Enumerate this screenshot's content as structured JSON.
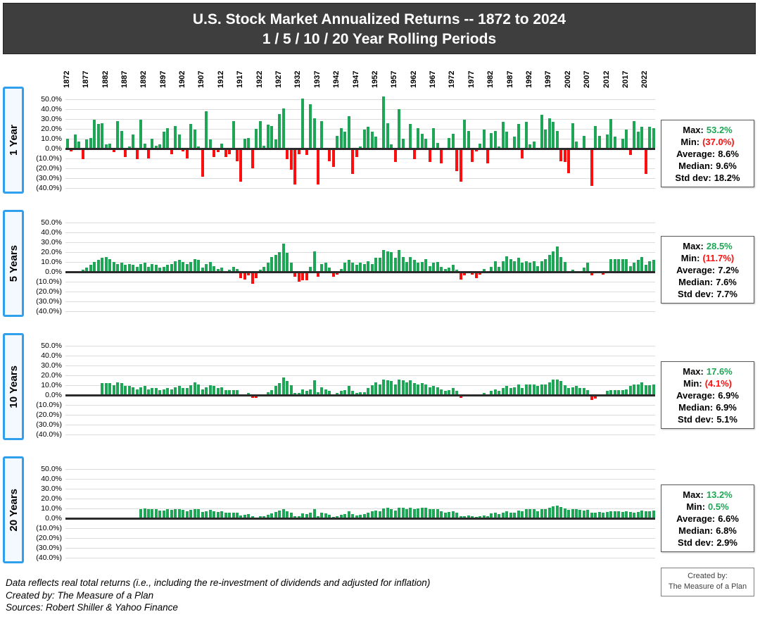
{
  "title": {
    "line1": "U.S. Stock Market Annualized Returns -- 1872 to 2024",
    "line2": "1 / 5 / 10 / 20 Year Rolling Periods"
  },
  "colors": {
    "positive": "#1EA555",
    "negative": "#FB0F0F",
    "title_bg": "#3E3E3E",
    "row_label_border": "#31A0EC",
    "grid": "#DCDCDC",
    "axis": "#2B2B2B"
  },
  "chart_data": {
    "type": "bar",
    "start_year": 1872,
    "end_year": 2024,
    "ylim": [
      -40,
      50
    ],
    "grid": true,
    "year_ticks": [
      1872,
      1877,
      1882,
      1887,
      1892,
      1897,
      1902,
      1907,
      1912,
      1917,
      1922,
      1927,
      1932,
      1937,
      1942,
      1947,
      1952,
      1957,
      1962,
      1967,
      1972,
      1977,
      1982,
      1987,
      1992,
      1997,
      2002,
      2007,
      2012,
      2017,
      2022
    ],
    "y_tick_labels": [
      "50.0%",
      "40.0%",
      "30.0%",
      "20.0%",
      "10.0%",
      "0.0%",
      "(10.0%)",
      "(20.0%)",
      "(30.0%)",
      "(40.0%)"
    ],
    "stat_labels": [
      "Max:",
      "Min:",
      "Average:",
      "Median:",
      "Std dev:"
    ],
    "charts": [
      {
        "row_label": "1 Year",
        "stats": {
          "max": "53.2%",
          "min": "(37.0%)",
          "average": "8.6%",
          "median": "9.6%",
          "stddev": "18.2%"
        },
        "values": [
          10,
          -2,
          14,
          7,
          -10,
          9,
          11,
          29,
          25,
          26,
          4,
          5,
          -3,
          28,
          18,
          -8,
          2,
          14,
          -10,
          29,
          5,
          -9,
          10,
          3,
          4,
          17,
          21,
          -5,
          23,
          14,
          -2,
          -9,
          25,
          19,
          2,
          -28,
          38,
          9,
          -8,
          -3,
          5,
          -8,
          -5,
          28,
          -12,
          -33,
          10,
          11,
          -19,
          20,
          28,
          3,
          24,
          23,
          9,
          35,
          41,
          -10,
          -21,
          -36,
          -5,
          51,
          -6,
          45,
          31,
          -36,
          28,
          -1,
          -12,
          -18,
          13,
          21,
          17,
          33,
          -25,
          -8,
          2,
          19,
          22,
          17,
          12,
          1,
          53.2,
          26,
          4,
          -13,
          40,
          10,
          1,
          25,
          -10,
          21,
          15,
          10,
          -13,
          21,
          6,
          -14,
          -1,
          11,
          15,
          -22,
          -33,
          29,
          18,
          -13,
          -2,
          5,
          19,
          -14,
          16,
          18,
          2,
          27,
          17,
          1,
          12,
          25,
          -9,
          27,
          4,
          7,
          -1,
          34,
          19,
          31,
          27,
          18,
          -12,
          -13,
          -24,
          26,
          7,
          1,
          13,
          1,
          -37,
          23,
          13,
          -1,
          14,
          30,
          12,
          0,
          10,
          19,
          -6,
          28,
          17,
          22,
          -25,
          22,
          21
        ]
      },
      {
        "row_label": "5 Years",
        "stats": {
          "max": "28.5%",
          "min": "(11.7%)",
          "average": "7.2%",
          "median": "7.6%",
          "stddev": "7.7%"
        },
        "values": [
          null,
          null,
          null,
          null,
          2,
          4,
          7,
          10,
          12,
          14,
          15,
          13,
          10,
          8,
          9,
          7,
          8,
          7,
          5,
          8,
          9,
          5,
          8,
          7,
          4,
          5,
          7,
          8,
          11,
          12,
          10,
          8,
          10,
          13,
          12,
          4,
          8,
          10,
          6,
          3,
          4,
          1,
          2,
          5,
          3,
          -6,
          -7,
          -3,
          -11.7,
          -6,
          2,
          5,
          9,
          15,
          17,
          20,
          28.5,
          19,
          9,
          -4,
          -9,
          -8,
          -8,
          5,
          21,
          -4,
          8,
          9,
          4,
          -4,
          -2,
          3,
          9,
          12,
          9,
          7,
          9,
          8,
          11,
          8,
          14,
          14,
          22,
          21,
          20,
          14,
          22,
          15,
          10,
          15,
          12,
          9,
          10,
          13,
          6,
          9,
          10,
          5,
          3,
          4,
          7,
          2,
          -7,
          -3,
          0.5,
          -2,
          -6,
          -2,
          3,
          1,
          5,
          11,
          5,
          11,
          16,
          13,
          11,
          14,
          9,
          11,
          9,
          11,
          6,
          11,
          13,
          17,
          21,
          26,
          15,
          10,
          0.5,
          2,
          1,
          -1,
          4,
          9,
          -3,
          -1,
          1,
          -2,
          0.5,
          13,
          13,
          13,
          13,
          13,
          6,
          9,
          12,
          15,
          7,
          11,
          12
        ]
      },
      {
        "row_label": "10 Years",
        "stats": {
          "max": "17.6%",
          "min": "(4.1%)",
          "average": "6.9%",
          "median": "6.9%",
          "stddev": "5.1%"
        },
        "values": [
          null,
          null,
          null,
          null,
          null,
          null,
          null,
          null,
          null,
          12,
          12,
          12,
          10,
          13,
          12,
          9,
          9,
          8,
          6,
          8,
          9,
          6,
          7,
          7,
          5,
          6,
          7,
          6,
          8,
          9,
          7,
          7,
          10,
          13,
          11,
          6,
          8,
          10,
          9,
          7,
          8,
          5,
          5,
          5,
          5,
          -1,
          0.5,
          2,
          -2,
          -2,
          -1,
          1,
          3,
          5,
          9,
          12,
          17.6,
          14,
          10,
          2,
          2,
          6,
          4,
          6,
          15,
          3,
          8,
          6,
          4,
          -1,
          2,
          4,
          5,
          9,
          4,
          2,
          3,
          3,
          7,
          10,
          13,
          11,
          16,
          15,
          14,
          11,
          16,
          15,
          13,
          15,
          12,
          11,
          12,
          11,
          8,
          9,
          8,
          6,
          4,
          5,
          7,
          4,
          -2,
          -1,
          1,
          -1,
          -1,
          1,
          2,
          1,
          4,
          6,
          4,
          7,
          9,
          7,
          8,
          11,
          7,
          11,
          11,
          11,
          9,
          11,
          11,
          13,
          16,
          16,
          14,
          10,
          7,
          8,
          9,
          7,
          7,
          5,
          -4.1,
          -3,
          1,
          1,
          4,
          5,
          5,
          5,
          5,
          6,
          9,
          11,
          11,
          13,
          10,
          10,
          11
        ]
      },
      {
        "row_label": "20 Years",
        "stats": {
          "max": "13.2%",
          "min": "0.5%",
          "average": "6.6%",
          "median": "6.8%",
          "stddev": "2.9%"
        },
        "values": [
          null,
          null,
          null,
          null,
          null,
          null,
          null,
          null,
          null,
          null,
          null,
          null,
          null,
          null,
          null,
          null,
          null,
          null,
          null,
          9.5,
          10,
          9,
          9.5,
          9,
          8,
          8,
          9,
          8.5,
          9,
          9.5,
          8.5,
          7.5,
          8.5,
          9.5,
          9,
          6.5,
          7.5,
          8.5,
          7.5,
          6.5,
          7,
          5.5,
          5.5,
          6,
          5.5,
          3,
          3.5,
          4.5,
          2,
          0.5,
          2,
          2.5,
          3.5,
          5,
          6.5,
          8,
          9.5,
          7.5,
          5.5,
          2.5,
          2,
          5,
          4,
          5.5,
          9,
          2.5,
          6,
          5,
          3.5,
          1.5,
          2,
          3.5,
          4.5,
          7,
          4,
          3,
          3.5,
          4,
          5.5,
          7,
          8,
          7,
          10,
          10.5,
          9.5,
          8,
          10.5,
          10.5,
          9,
          11,
          9.5,
          10,
          10.5,
          10.5,
          9,
          9.5,
          9,
          7.5,
          6,
          6.5,
          7.5,
          5.5,
          2,
          2.5,
          3,
          2,
          1.5,
          2,
          3,
          2,
          5,
          6,
          4,
          6,
          7,
          6,
          6,
          8,
          7,
          9,
          9,
          9,
          7.5,
          9,
          9.5,
          11,
          12.5,
          13.2,
          11.5,
          10,
          8.5,
          9,
          9,
          8.5,
          8,
          8.5,
          6,
          6,
          6.5,
          6,
          6.5,
          7.5,
          7.5,
          7,
          6.5,
          7,
          6.5,
          6,
          6.5,
          8,
          7,
          7.5,
          8
        ]
      }
    ]
  },
  "footer": {
    "line1": "Data reflects real total returns (i.e., including the re-investment of dividends and adjusted for inflation)",
    "line2": "Created by: The Measure of a Plan",
    "line3": "Sources: Robert Shiller & Yahoo Finance"
  },
  "credit_box": {
    "line1": "Created by:",
    "line2": "The Measure of a Plan"
  }
}
